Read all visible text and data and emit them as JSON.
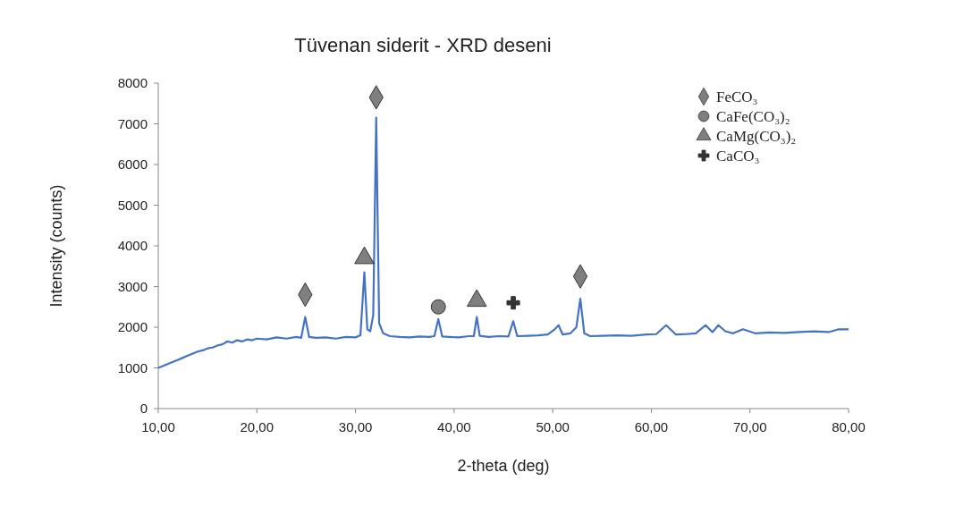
{
  "chart_data": {
    "type": "line",
    "title": "Tüvenan siderit - XRD deseni",
    "xlabel": "2-theta (deg)",
    "ylabel": "Intensity (counts)",
    "xlim": [
      10,
      80
    ],
    "ylim": [
      0,
      8000
    ],
    "xticks": [
      {
        "value": 10,
        "label": "10,00"
      },
      {
        "value": 20,
        "label": "20,00"
      },
      {
        "value": 30,
        "label": "30,00"
      },
      {
        "value": 40,
        "label": "40,00"
      },
      {
        "value": 50,
        "label": "50,00"
      },
      {
        "value": 60,
        "label": "60,00"
      },
      {
        "value": 70,
        "label": "70,00"
      },
      {
        "value": 80,
        "label": "80,00"
      }
    ],
    "yticks": [
      0,
      1000,
      2000,
      3000,
      4000,
      5000,
      6000,
      7000,
      8000
    ],
    "legend": "top right",
    "series": [
      {
        "color": "#4472c4",
        "marker": "none",
        "line_style": "solid",
        "x": [
          10,
          10.5,
          11,
          11.5,
          12,
          12.5,
          13,
          13.5,
          14,
          14.5,
          15,
          15.5,
          16,
          16.5,
          17,
          17.5,
          18,
          18.5,
          19,
          19.5,
          20,
          21,
          22,
          23,
          24,
          24.5,
          24.9,
          25.3,
          26,
          27,
          28,
          29,
          30,
          30.5,
          30.9,
          31.2,
          31.5,
          31.8,
          32.1,
          32.4,
          32.8,
          33.5,
          34.5,
          35.5,
          36.5,
          37.5,
          38,
          38.4,
          38.8,
          39.5,
          40.5,
          41.5,
          42,
          42.3,
          42.6,
          43.5,
          44.5,
          45.5,
          46,
          46.4,
          47.5,
          48.5,
          49.5,
          50.2,
          50.6,
          51,
          51.8,
          52.4,
          52.8,
          53.2,
          53.8,
          55,
          56.5,
          58,
          59.5,
          60.5,
          61.5,
          62.5,
          63.5,
          64.5,
          65.5,
          66.2,
          66.8,
          67.5,
          68.3,
          69.3,
          70.5,
          72,
          73.5,
          75,
          76.5,
          78,
          79,
          80
        ],
        "values": [
          1000,
          1050,
          1100,
          1150,
          1200,
          1250,
          1300,
          1350,
          1400,
          1430,
          1480,
          1500,
          1550,
          1580,
          1650,
          1620,
          1680,
          1650,
          1700,
          1680,
          1720,
          1700,
          1750,
          1720,
          1760,
          1740,
          2250,
          1760,
          1740,
          1750,
          1720,
          1760,
          1750,
          1800,
          3350,
          1950,
          1900,
          2300,
          7150,
          2100,
          1850,
          1780,
          1760,
          1750,
          1770,
          1760,
          1780,
          2200,
          1770,
          1760,
          1750,
          1780,
          1780,
          2250,
          1790,
          1760,
          1780,
          1770,
          2150,
          1780,
          1790,
          1800,
          1820,
          1950,
          2050,
          1820,
          1850,
          2000,
          2700,
          1850,
          1780,
          1790,
          1800,
          1790,
          1820,
          1830,
          2050,
          1820,
          1830,
          1850,
          2050,
          1880,
          2050,
          1900,
          1850,
          1950,
          1850,
          1870,
          1860,
          1880,
          1900,
          1880,
          1950,
          1950
        ]
      },
      {
        "type": "scatter",
        "name": "FeCO₃",
        "color": "#7f7f7f",
        "marker": "diamond",
        "x": [
          24.9,
          32.1,
          52.8
        ],
        "values": [
          2800,
          7650,
          3250
        ]
      },
      {
        "type": "scatter",
        "name": "CaFe(CO₃)₂",
        "color": "#7f7f7f",
        "marker": "circle",
        "x": [
          38.4
        ],
        "values": [
          2500
        ]
      },
      {
        "type": "scatter",
        "name": "CaMg(CO₃)₂",
        "color": "#7f7f7f",
        "marker": "triangle",
        "x": [
          30.9,
          42.3
        ],
        "values": [
          3700,
          2650
        ]
      },
      {
        "type": "scatter",
        "name": "CaCO₃",
        "color": "#333333",
        "marker": "cross",
        "x": [
          46
        ],
        "values": [
          2600
        ]
      }
    ]
  }
}
